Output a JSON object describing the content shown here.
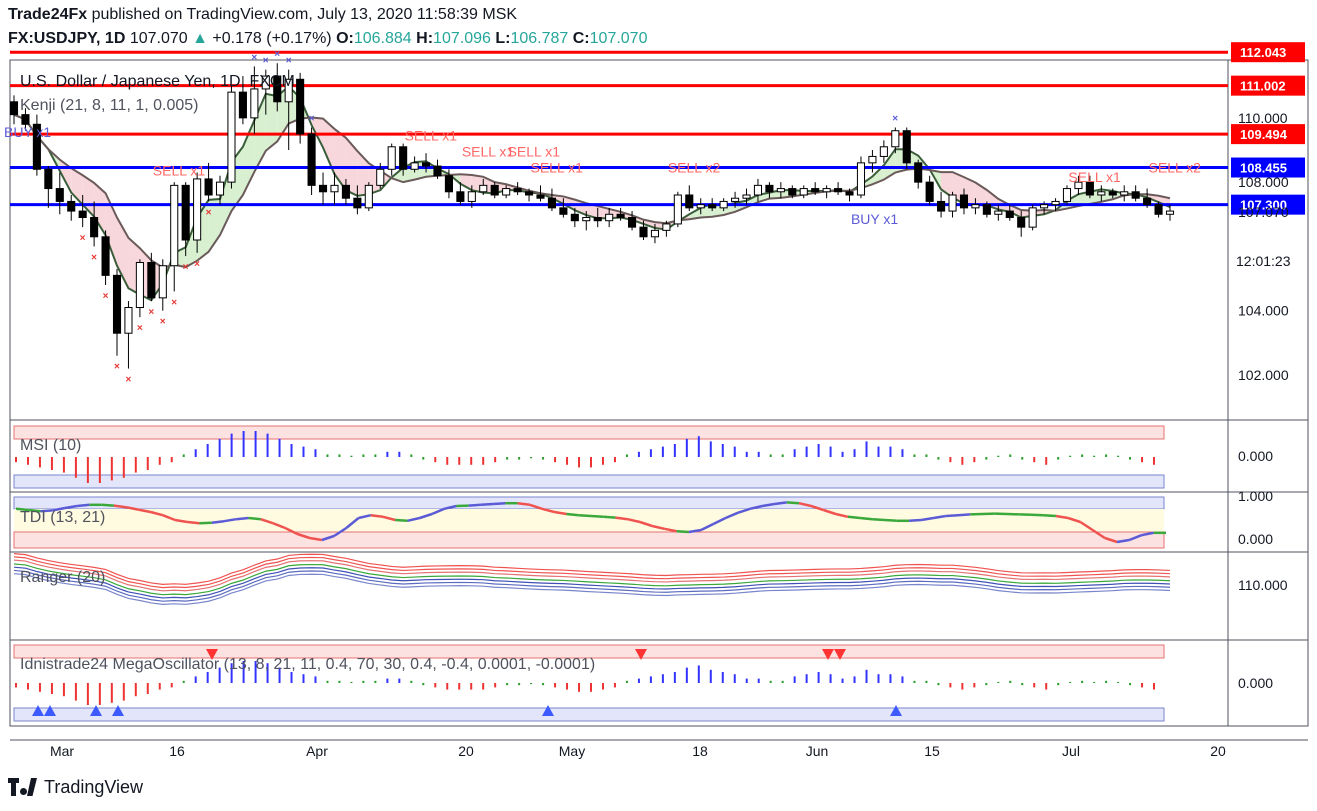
{
  "header": {
    "publisher": "Trade24Fx",
    "published_text": "published on TradingView.com, July 13, 2020 11:58:39 MSK",
    "symbol": "FX:USDJPY, 1D",
    "last": "107.070",
    "change": "+0.178 (+0.17%)",
    "o_label": "O:",
    "o": "106.884",
    "h_label": "H:",
    "h": "107.096",
    "l_label": "L:",
    "l": "106.787",
    "c_label": "C:",
    "c": "107.070"
  },
  "footer": {
    "brand": "TradingView"
  },
  "colors": {
    "up": "#ffffff",
    "down": "#000000",
    "red_level": "#ff0000",
    "blue_level": "#0000ff",
    "kenji_fill_down": "#f8d7dc",
    "kenji_fill_up": "#d8f0d0",
    "buy": "#5b5bd6",
    "sell": "#ff6666"
  },
  "chart_data": [
    {
      "type": "candlestick",
      "title": "U.S. Dollar / Japanese Yen, 1D, FXCM",
      "indicator_label": "Kenji (21, 8, 11, 1, 0.005)",
      "y_ticks": [
        "110.000",
        "108.000",
        "107.070",
        "104.000",
        "102.000"
      ],
      "y_tick_values": [
        110.0,
        108.0,
        107.07,
        104.0,
        102.0
      ],
      "ylim": [
        100.6,
        111.8
      ],
      "time_label": "12:01:23",
      "x_ticks": [
        "Mar",
        "16",
        "Apr",
        "20",
        "May",
        "18",
        "Jun",
        "15",
        "Jul",
        "20"
      ],
      "levels": [
        {
          "value": 112.043,
          "label": "112.043",
          "color": "red"
        },
        {
          "value": 111.002,
          "label": "111.002",
          "color": "red"
        },
        {
          "value": 109.494,
          "label": "109.494",
          "color": "red"
        },
        {
          "value": 108.455,
          "label": "108.455",
          "color": "blue"
        },
        {
          "value": 107.3,
          "label": "107.300",
          "color": "blue"
        }
      ],
      "signals": [
        {
          "text": "BUY x1",
          "color": "buy",
          "x_index": 0,
          "y": 109.4
        },
        {
          "text": "SELL x1",
          "color": "sell",
          "x_index": 13,
          "y": 108.2
        },
        {
          "text": "SELL x1",
          "color": "sell",
          "x_index": 35,
          "y": 109.3
        },
        {
          "text": "SELL x1",
          "color": "sell",
          "x_index": 40,
          "y": 108.8
        },
        {
          "text": "SELL x1",
          "color": "sell",
          "x_index": 44,
          "y": 108.8
        },
        {
          "text": "SELL x1",
          "color": "sell",
          "x_index": 46,
          "y": 108.3
        },
        {
          "text": "SELL x2",
          "color": "sell",
          "x_index": 58,
          "y": 108.3
        },
        {
          "text": "BUY x1",
          "color": "buy",
          "x_index": 74,
          "y": 106.7
        },
        {
          "text": "SELL x1",
          "color": "sell",
          "x_index": 93,
          "y": 108.0
        },
        {
          "text": "SELL x2",
          "color": "sell",
          "x_index": 100,
          "y": 108.3
        }
      ],
      "candles": [
        [
          110.5,
          110.7,
          109.8,
          110.1
        ],
        [
          110.1,
          110.3,
          109.6,
          109.8
        ],
        [
          109.8,
          110.1,
          108.2,
          108.4
        ],
        [
          108.4,
          108.5,
          107.2,
          107.8
        ],
        [
          107.8,
          108.3,
          107.0,
          107.4
        ],
        [
          107.4,
          107.6,
          106.8,
          107.1
        ],
        [
          107.1,
          107.6,
          106.6,
          106.9
        ],
        [
          106.9,
          107.4,
          106.0,
          106.3
        ],
        [
          106.3,
          106.5,
          104.8,
          105.1
        ],
        [
          105.1,
          105.3,
          102.6,
          103.3
        ],
        [
          103.3,
          104.3,
          102.2,
          104.1
        ],
        [
          104.1,
          105.6,
          103.8,
          105.5
        ],
        [
          105.5,
          105.8,
          104.3,
          104.4
        ],
        [
          104.4,
          105.6,
          104.0,
          105.4
        ],
        [
          105.4,
          108.0,
          104.6,
          107.9
        ],
        [
          107.9,
          108.0,
          105.7,
          106.2
        ],
        [
          106.2,
          108.3,
          105.8,
          108.1
        ],
        [
          108.1,
          108.6,
          107.4,
          107.6
        ],
        [
          107.6,
          108.2,
          107.3,
          108.0
        ],
        [
          108.0,
          111.0,
          107.8,
          110.8
        ],
        [
          110.8,
          111.3,
          109.8,
          110.0
        ],
        [
          110.0,
          111.6,
          109.5,
          110.9
        ],
        [
          110.9,
          111.5,
          110.1,
          111.3
        ],
        [
          111.3,
          111.7,
          110.2,
          110.5
        ],
        [
          110.5,
          111.5,
          109.0,
          111.2
        ],
        [
          111.2,
          111.4,
          109.2,
          109.5
        ],
        [
          109.5,
          109.7,
          107.6,
          107.9
        ],
        [
          107.9,
          108.3,
          107.3,
          107.7
        ],
        [
          107.7,
          108.3,
          107.3,
          107.9
        ],
        [
          107.9,
          108.1,
          107.3,
          107.5
        ],
        [
          107.5,
          107.9,
          107.0,
          107.2
        ],
        [
          107.2,
          108.0,
          107.1,
          107.9
        ],
        [
          107.9,
          108.6,
          107.8,
          108.4
        ],
        [
          108.4,
          109.2,
          108.2,
          109.1
        ],
        [
          109.1,
          109.2,
          108.2,
          108.4
        ],
        [
          108.4,
          108.8,
          108.3,
          108.6
        ],
        [
          108.6,
          108.9,
          108.3,
          108.5
        ],
        [
          108.5,
          108.7,
          108.1,
          108.2
        ],
        [
          108.2,
          108.4,
          107.5,
          107.7
        ],
        [
          107.7,
          108.0,
          107.3,
          107.4
        ],
        [
          107.4,
          107.9,
          107.2,
          107.7
        ],
        [
          107.7,
          108.1,
          107.6,
          107.9
        ],
        [
          107.9,
          108.0,
          107.5,
          107.6
        ],
        [
          107.6,
          107.9,
          107.5,
          107.8
        ],
        [
          107.8,
          108.0,
          107.6,
          107.7
        ],
        [
          107.7,
          107.8,
          107.4,
          107.6
        ],
        [
          107.6,
          107.9,
          107.4,
          107.5
        ],
        [
          107.5,
          107.8,
          107.1,
          107.2
        ],
        [
          107.2,
          107.5,
          106.9,
          107.0
        ],
        [
          107.0,
          107.2,
          106.6,
          106.8
        ],
        [
          106.8,
          107.1,
          106.5,
          106.9
        ],
        [
          106.9,
          107.2,
          106.6,
          106.8
        ],
        [
          106.8,
          107.2,
          106.6,
          107.0
        ],
        [
          107.0,
          107.2,
          106.8,
          106.9
        ],
        [
          106.9,
          107.1,
          106.5,
          106.6
        ],
        [
          106.6,
          106.8,
          106.2,
          106.3
        ],
        [
          106.3,
          106.7,
          106.1,
          106.5
        ],
        [
          106.5,
          106.8,
          106.3,
          106.7
        ],
        [
          106.7,
          107.7,
          106.6,
          107.6
        ],
        [
          107.6,
          107.9,
          107.1,
          107.2
        ],
        [
          107.2,
          107.5,
          107.0,
          107.3
        ],
        [
          107.3,
          107.5,
          107.1,
          107.2
        ],
        [
          107.2,
          107.5,
          107.1,
          107.4
        ],
        [
          107.4,
          107.7,
          107.2,
          107.5
        ],
        [
          107.5,
          107.8,
          107.3,
          107.6
        ],
        [
          107.6,
          108.1,
          107.4,
          107.9
        ],
        [
          107.9,
          108.0,
          107.5,
          107.7
        ],
        [
          107.7,
          108.0,
          107.5,
          107.8
        ],
        [
          107.8,
          107.9,
          107.5,
          107.6
        ],
        [
          107.6,
          107.9,
          107.5,
          107.8
        ],
        [
          107.8,
          108.0,
          107.6,
          107.7
        ],
        [
          107.7,
          107.9,
          107.5,
          107.8
        ],
        [
          107.8,
          108.0,
          107.6,
          107.7
        ],
        [
          107.7,
          107.8,
          107.4,
          107.6
        ],
        [
          107.6,
          108.8,
          107.5,
          108.6
        ],
        [
          108.6,
          109.0,
          108.3,
          108.8
        ],
        [
          108.8,
          109.3,
          108.6,
          109.1
        ],
        [
          109.1,
          109.7,
          108.9,
          109.6
        ],
        [
          109.6,
          109.7,
          108.4,
          108.6
        ],
        [
          108.6,
          108.7,
          107.8,
          108.0
        ],
        [
          108.0,
          108.2,
          107.3,
          107.4
        ],
        [
          107.4,
          107.7,
          106.9,
          107.1
        ],
        [
          107.1,
          107.7,
          106.9,
          107.6
        ],
        [
          107.6,
          107.8,
          107.0,
          107.2
        ],
        [
          107.2,
          107.5,
          107.0,
          107.3
        ],
        [
          107.3,
          107.4,
          106.9,
          107.0
        ],
        [
          107.0,
          107.3,
          106.8,
          107.1
        ],
        [
          107.1,
          107.3,
          106.8,
          106.9
        ],
        [
          106.9,
          107.1,
          106.3,
          106.6
        ],
        [
          106.6,
          107.3,
          106.5,
          107.2
        ],
        [
          107.2,
          107.4,
          107.0,
          107.3
        ],
        [
          107.3,
          107.5,
          107.1,
          107.4
        ],
        [
          107.4,
          107.9,
          107.3,
          107.8
        ],
        [
          107.8,
          108.2,
          107.6,
          108.0
        ],
        [
          108.0,
          108.2,
          107.5,
          107.6
        ],
        [
          107.6,
          107.9,
          107.4,
          107.7
        ],
        [
          107.7,
          107.8,
          107.5,
          107.6
        ],
        [
          107.6,
          107.9,
          107.4,
          107.7
        ],
        [
          107.7,
          107.9,
          107.4,
          107.5
        ],
        [
          107.5,
          107.8,
          107.2,
          107.3
        ],
        [
          107.3,
          107.4,
          106.9,
          107.0
        ],
        [
          107.0,
          107.3,
          106.8,
          107.1
        ]
      ]
    },
    {
      "type": "histogram",
      "name": "MSI (10)",
      "zero_label": "0.000",
      "values": [
        -0.2,
        -0.3,
        -0.4,
        -0.5,
        -0.6,
        -0.8,
        -1,
        -1,
        -0.9,
        -0.8,
        -0.6,
        -0.5,
        -0.3,
        -0.2,
        0.1,
        0.3,
        0.5,
        0.7,
        0.9,
        1,
        1,
        0.9,
        0.7,
        0.5,
        0.4,
        0.3,
        0.1,
        0.1,
        0.05,
        0.1,
        0.1,
        0.2,
        0.2,
        0.1,
        -0.1,
        -0.2,
        -0.3,
        -0.3,
        -0.3,
        -0.3,
        -0.2,
        -0.1,
        -0.1,
        -0.05,
        -0.1,
        -0.2,
        -0.3,
        -0.4,
        -0.4,
        -0.3,
        -0.2,
        0.1,
        0.2,
        0.3,
        0.4,
        0.5,
        0.7,
        0.8,
        0.6,
        0.5,
        0.4,
        0.2,
        0.2,
        0.1,
        0.1,
        0.3,
        0.4,
        0.5,
        0.4,
        0.2,
        0.3,
        0.6,
        0.4,
        0.4,
        0.3,
        0.1,
        0.1,
        -0.1,
        -0.2,
        -0.3,
        -0.2,
        -0.1,
        0.05,
        0.1,
        -0.1,
        -0.2,
        -0.3,
        -0.1,
        0.05,
        0.1,
        0.05,
        0.1,
        0.05,
        -0.1,
        -0.2,
        -0.3
      ]
    },
    {
      "type": "line",
      "name": "TDI (13, 21)",
      "y_ticks": [
        "1.000",
        "0.000"
      ],
      "ylim": [
        -0.25,
        1.1
      ],
      "values": [
        0.78,
        0.75,
        0.72,
        0.74,
        0.8,
        0.85,
        0.88,
        0.88,
        0.86,
        0.82,
        0.76,
        0.7,
        0.62,
        0.5,
        0.45,
        0.42,
        0.43,
        0.47,
        0.52,
        0.55,
        0.52,
        0.42,
        0.3,
        0.15,
        0.05,
        0.0,
        0.1,
        0.3,
        0.55,
        0.62,
        0.58,
        0.5,
        0.48,
        0.55,
        0.65,
        0.78,
        0.85,
        0.86,
        0.88,
        0.9,
        0.92,
        0.92,
        0.88,
        0.78,
        0.7,
        0.65,
        0.62,
        0.6,
        0.58,
        0.56,
        0.52,
        0.45,
        0.35,
        0.28,
        0.22,
        0.2,
        0.25,
        0.4,
        0.55,
        0.68,
        0.78,
        0.85,
        0.9,
        0.94,
        0.92,
        0.85,
        0.75,
        0.65,
        0.58,
        0.55,
        0.52,
        0.5,
        0.48,
        0.48,
        0.5,
        0.55,
        0.6,
        0.62,
        0.64,
        0.65,
        0.66,
        0.65,
        0.64,
        0.63,
        0.62,
        0.6,
        0.55,
        0.45,
        0.25,
        0.05,
        -0.05,
        0.0,
        0.12,
        0.18,
        0.18
      ]
    },
    {
      "type": "line",
      "name": "Ranger (20)",
      "y_ticks": [
        "110.000"
      ]
    },
    {
      "type": "histogram",
      "name": "Idnistrade24 MegaOscillator (13, 8, 21, 11, 0.4, 70, 30, 0.4, -0.4, 0.0001, -0.0001)",
      "zero_label": "0.000"
    }
  ]
}
